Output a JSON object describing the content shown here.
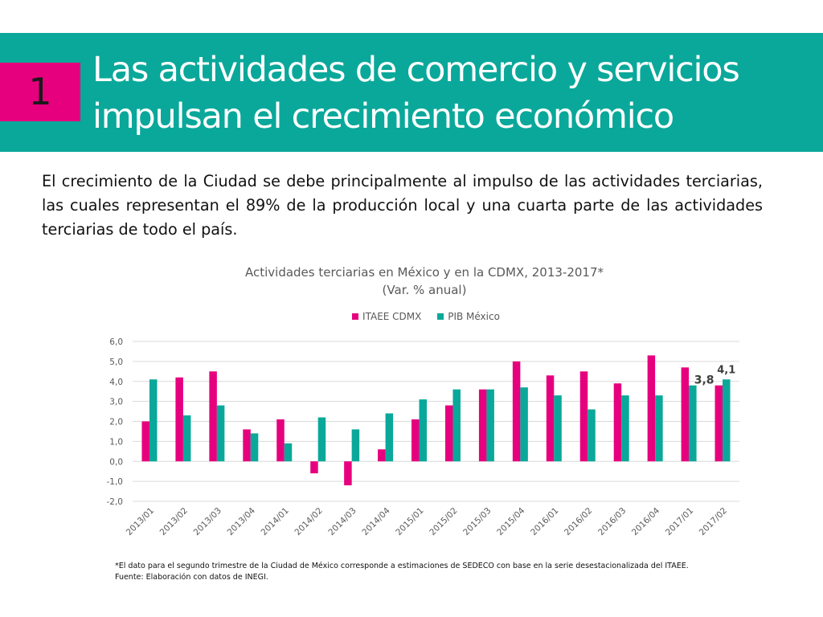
{
  "slide": {
    "number": "1",
    "title": "Las actividades de comercio y servicios impulsan el crecimiento económico",
    "body": "El crecimiento de la Ciudad se debe principalmente al impulso de las actividades terciarias, las cuales representan el 89% de la producción local y una cuarta parte de las actividades terciarias de todo el país.",
    "footnote": "*El dato para el segundo trimestre de la Ciudad de México corresponde a estimaciones de SEDECO con base en la serie desestacionalizada del ITAEE.",
    "source": "Fuente: Elaboración con datos de INEGI."
  },
  "colors": {
    "header": "#0aa89a",
    "number_box": "#e6007e",
    "itaee": "#e6007e",
    "pib": "#0aa89a"
  },
  "chart_data": {
    "type": "bar",
    "title": "Actividades terciarias en México y en la CDMX, 2013-2017*",
    "subtitle": "(Var. % anual)",
    "xlabel": "",
    "ylabel": "",
    "ylim": [
      -2,
      6
    ],
    "yticks": [
      "6,0",
      "5,0",
      "4,0",
      "3,0",
      "2,0",
      "1,0",
      "0,0",
      "-1,0",
      "-2,0"
    ],
    "grid": true,
    "legend_position": "top",
    "categories": [
      "2013/01",
      "2013/02",
      "2013/03",
      "2013/04",
      "2014/01",
      "2014/02",
      "2014/03",
      "2014/04",
      "2015/01",
      "2015/02",
      "2015/03",
      "2015/04",
      "2016/01",
      "2016/02",
      "2016/03",
      "2016/04",
      "2017/01",
      "2017/02"
    ],
    "series": [
      {
        "name": "ITAEE CDMX",
        "color": "#e6007e",
        "values": [
          2.0,
          4.2,
          4.5,
          1.6,
          2.1,
          -0.6,
          -1.2,
          0.6,
          2.1,
          2.8,
          3.6,
          5.0,
          4.3,
          4.5,
          3.9,
          5.3,
          4.7,
          3.8
        ]
      },
      {
        "name": "PIB México",
        "color": "#0aa89a",
        "values": [
          4.1,
          2.3,
          2.8,
          1.4,
          0.9,
          2.2,
          1.6,
          2.4,
          3.1,
          3.6,
          3.6,
          3.7,
          3.3,
          2.6,
          3.3,
          3.3,
          3.8,
          4.1
        ]
      }
    ],
    "annotations": [
      {
        "series": "ITAEE CDMX",
        "category": "2017/02",
        "text": "3,8"
      },
      {
        "series": "PIB México",
        "category": "2017/02",
        "text": "4,1"
      }
    ]
  }
}
